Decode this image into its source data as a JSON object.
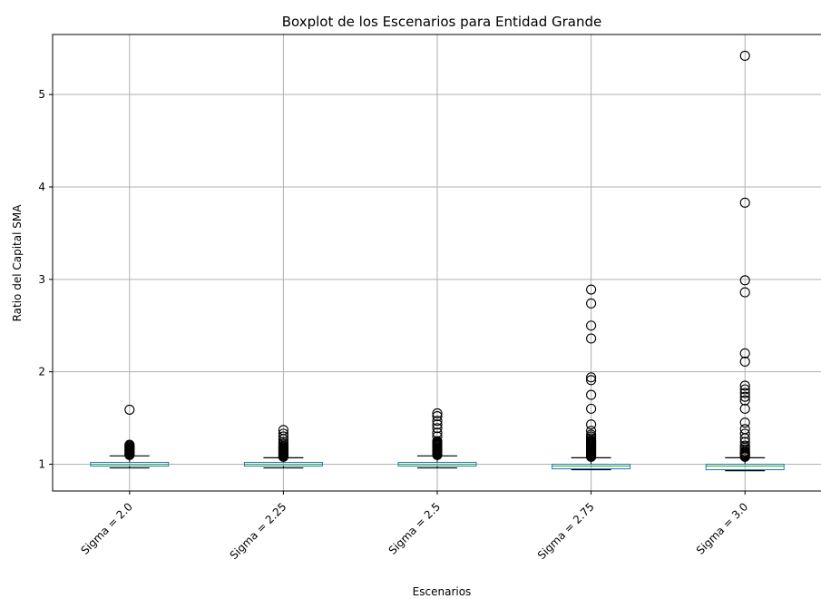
{
  "chart_data": {
    "type": "boxplot",
    "title": "Boxplot de los Escenarios para Entidad Grande",
    "xlabel": "Escenarios",
    "ylabel": "Ratio del Capital SMA",
    "ylim": [
      0.71,
      5.65
    ],
    "yticks": [
      1,
      2,
      3,
      4,
      5
    ],
    "grid": true,
    "categories": [
      "Sigma = 2.0",
      "Sigma = 2.25",
      "Sigma = 2.5",
      "Sigma = 2.75",
      "Sigma = 3.0"
    ],
    "boxes": [
      {
        "name": "Sigma = 2.0",
        "whisker_low": 0.96,
        "q1": 0.98,
        "median": 1.0,
        "q3": 1.02,
        "whisker_high": 1.09,
        "fliers": [
          1.1,
          1.11,
          1.12,
          1.13,
          1.14,
          1.15,
          1.16,
          1.17,
          1.18,
          1.19,
          1.2,
          1.21,
          1.59
        ]
      },
      {
        "name": "Sigma = 2.25",
        "whisker_low": 0.96,
        "q1": 0.98,
        "median": 1.0,
        "q3": 1.02,
        "whisker_high": 1.07,
        "fliers": [
          1.08,
          1.09,
          1.1,
          1.11,
          1.12,
          1.13,
          1.14,
          1.15,
          1.16,
          1.17,
          1.18,
          1.19,
          1.2,
          1.22,
          1.24,
          1.27,
          1.3,
          1.33,
          1.37
        ]
      },
      {
        "name": "Sigma = 2.5",
        "whisker_low": 0.96,
        "q1": 0.98,
        "median": 1.0,
        "q3": 1.02,
        "whisker_high": 1.09,
        "fliers": [
          1.1,
          1.11,
          1.12,
          1.13,
          1.14,
          1.15,
          1.16,
          1.17,
          1.18,
          1.19,
          1.2,
          1.21,
          1.22,
          1.23,
          1.24,
          1.25,
          1.3,
          1.34,
          1.39,
          1.43,
          1.47,
          1.52,
          1.55
        ]
      },
      {
        "name": "Sigma = 2.75",
        "whisker_low": 0.94,
        "q1": 0.95,
        "median": 0.98,
        "q3": 1.0,
        "whisker_high": 1.07,
        "fliers": [
          1.08,
          1.09,
          1.1,
          1.11,
          1.12,
          1.13,
          1.14,
          1.15,
          1.16,
          1.17,
          1.18,
          1.19,
          1.2,
          1.21,
          1.22,
          1.23,
          1.24,
          1.25,
          1.26,
          1.28,
          1.3,
          1.32,
          1.36,
          1.43,
          1.6,
          1.75,
          1.91,
          1.94,
          2.36,
          2.5,
          2.74,
          2.89
        ]
      },
      {
        "name": "Sigma = 3.0",
        "whisker_low": 0.93,
        "q1": 0.94,
        "median": 0.98,
        "q3": 1.0,
        "whisker_high": 1.07,
        "fliers": [
          1.08,
          1.09,
          1.1,
          1.11,
          1.12,
          1.13,
          1.14,
          1.16,
          1.18,
          1.2,
          1.24,
          1.28,
          1.33,
          1.38,
          1.45,
          1.6,
          1.69,
          1.73,
          1.77,
          1.81,
          1.85,
          2.11,
          2.2,
          2.86,
          2.99,
          3.83,
          5.42
        ]
      }
    ]
  }
}
